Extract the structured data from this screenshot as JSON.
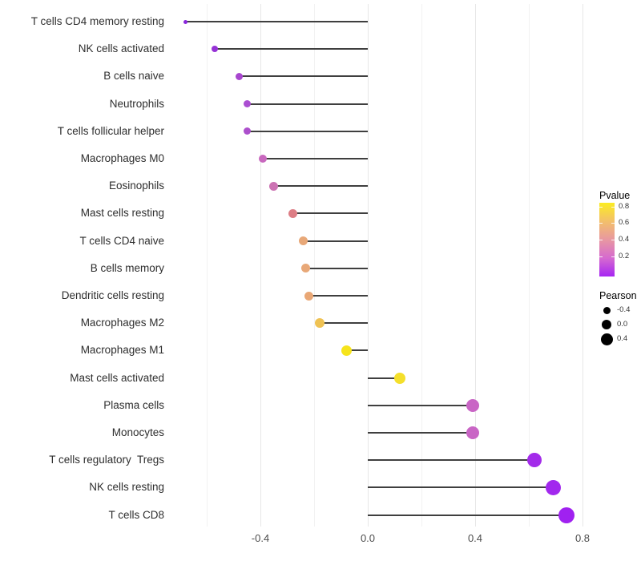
{
  "chart_data": {
    "type": "scatter",
    "variant": "lollipop",
    "title": "",
    "xlabel": "",
    "ylabel": "",
    "x_ticks": [
      "-0.4",
      "0.0",
      "0.4",
      "0.8"
    ],
    "x_tick_values": [
      -0.4,
      0.0,
      0.4,
      0.8
    ],
    "x_minor_gridlines": [
      -0.6,
      -0.2,
      0.2,
      0.6
    ],
    "xlim": [
      -0.74,
      0.82
    ],
    "grid": "major+minor vertical, white background",
    "legend_position": "right",
    "stem_color": "#3f3f3f",
    "axis_text_color": "#4d4d4d",
    "categories": [
      "T cells CD4 memory resting",
      "NK cells activated",
      "B cells naive",
      "Neutrophils",
      "T cells follicular helper",
      "Macrophages M0",
      "Eosinophils",
      "Mast cells resting",
      "T cells CD4 naive",
      "B cells memory",
      "Dendritic cells resting",
      "Macrophages M2",
      "Macrophages M1",
      "Mast cells activated",
      "Plasma cells",
      "Monocytes",
      "T cells regulatory  Tregs",
      "NK cells resting",
      "T cells CD8"
    ],
    "points": [
      {
        "label": "T cells CD4 memory resting",
        "pearson": -0.68,
        "pvalue": 0.02,
        "color": "#8a27dd",
        "radius": 2.5
      },
      {
        "label": "NK cells activated",
        "pearson": -0.57,
        "pvalue": 0.05,
        "color": "#9632d6",
        "radius": 4
      },
      {
        "label": "B cells naive",
        "pearson": -0.48,
        "pvalue": 0.1,
        "color": "#a846cf",
        "radius": 4.5
      },
      {
        "label": "Neutrophils",
        "pearson": -0.45,
        "pvalue": 0.12,
        "color": "#ab4ed2",
        "radius": 4.5
      },
      {
        "label": "T cells follicular helper",
        "pearson": -0.45,
        "pvalue": 0.12,
        "color": "#ac4fcc",
        "radius": 4.5
      },
      {
        "label": "Macrophages M0",
        "pearson": -0.39,
        "pvalue": 0.22,
        "color": "#c868be",
        "radius": 5
      },
      {
        "label": "Eosinophils",
        "pearson": -0.35,
        "pvalue": 0.28,
        "color": "#cc73b3",
        "radius": 5.5
      },
      {
        "label": "Mast cells resting",
        "pearson": -0.28,
        "pvalue": 0.45,
        "color": "#dd7d85",
        "radius": 5.5
      },
      {
        "label": "T cells CD4 naive",
        "pearson": -0.24,
        "pvalue": 0.52,
        "color": "#e8a878",
        "radius": 5.5
      },
      {
        "label": "B cells memory",
        "pearson": -0.23,
        "pvalue": 0.52,
        "color": "#e8a878",
        "radius": 5.5
      },
      {
        "label": "Dendritic cells resting",
        "pearson": -0.22,
        "pvalue": 0.53,
        "color": "#e9a775",
        "radius": 5.5
      },
      {
        "label": "Macrophages M2",
        "pearson": -0.18,
        "pvalue": 0.62,
        "color": "#efc253",
        "radius": 6
      },
      {
        "label": "Macrophages M1",
        "pearson": -0.08,
        "pvalue": 0.8,
        "color": "#f6e41c",
        "radius": 6.5
      },
      {
        "label": "Mast cells activated",
        "pearson": 0.12,
        "pvalue": 0.76,
        "color": "#f4df2b",
        "radius": 7
      },
      {
        "label": "Plasma cells",
        "pearson": 0.39,
        "pvalue": 0.24,
        "color": "#c965c5",
        "radius": 8
      },
      {
        "label": "Monocytes",
        "pearson": 0.39,
        "pvalue": 0.24,
        "color": "#c965c5",
        "radius": 8
      },
      {
        "label": "T cells regulatory  Tregs",
        "pearson": 0.62,
        "pvalue": 0.04,
        "color": "#a32bea",
        "radius": 9
      },
      {
        "label": "NK cells resting",
        "pearson": 0.69,
        "pvalue": 0.03,
        "color": "#a228ee",
        "radius": 9.5
      },
      {
        "label": "T cells CD8",
        "pearson": 0.74,
        "pvalue": 0.02,
        "color": "#a021f0",
        "radius": 10
      }
    ],
    "legends": {
      "pvalue": {
        "title": "Pvalue",
        "tick_labels": [
          "0.8",
          "0.6",
          "0.4",
          "0.2"
        ],
        "gradient_top_to_bottom": [
          "#fbec22",
          "#f3c06a",
          "#e898a1",
          "#d66acf",
          "#a726f2"
        ]
      },
      "pearson": {
        "title": "Pearson",
        "dot_color": "#000000",
        "entries": [
          {
            "label": "-0.4",
            "radius": 4.5
          },
          {
            "label": "0.0",
            "radius": 6
          },
          {
            "label": "0.4",
            "radius": 7.5
          }
        ]
      }
    }
  }
}
